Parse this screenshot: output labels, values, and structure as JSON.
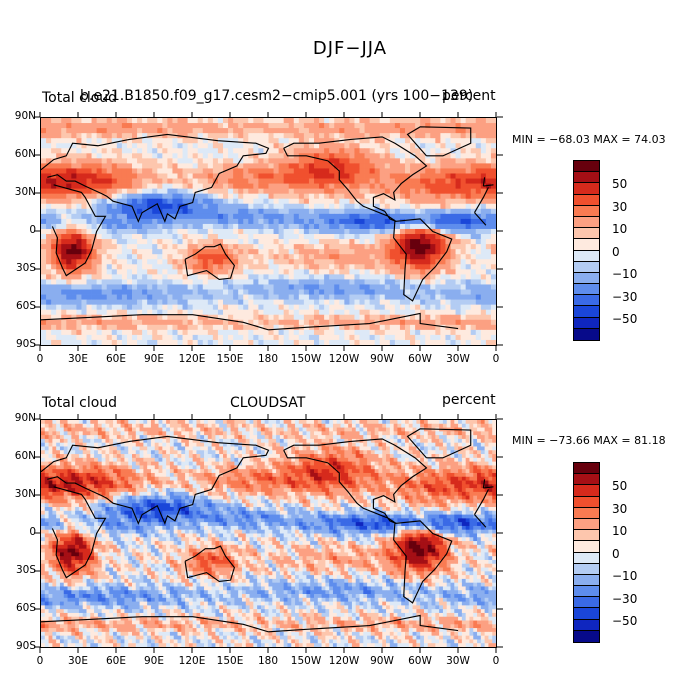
{
  "figure": {
    "title": "DJF−JJA"
  },
  "axes": {
    "lat_labels": [
      "90N",
      "60N",
      "30N",
      "0",
      "30S",
      "60S",
      "90S"
    ],
    "lon_labels": [
      "0",
      "30E",
      "60E",
      "90E",
      "120E",
      "150E",
      "180",
      "150W",
      "120W",
      "90W",
      "60W",
      "30W",
      "0"
    ]
  },
  "colors": {
    "levels": [
      "#67000d",
      "#a50f15",
      "#d62a1c",
      "#f0502e",
      "#f97b52",
      "#fca082",
      "#fdc6ad",
      "#feeadf",
      "#dde9f7",
      "#b3ccf3",
      "#8aaeef",
      "#5e8ded",
      "#3a6ae6",
      "#1a46d9",
      "#0f26bf",
      "#070a8a"
    ],
    "coast": "#000000"
  },
  "panels": [
    {
      "id": "model",
      "left_label": "Total cloud",
      "center_label": "b.e21.B1850.f09_g17.cesm2−cmip5.001 (yrs 100−139)",
      "right_label": "percent",
      "stats_text": "MIN = −68.03 MAX =  74.03",
      "min": -68.03,
      "max": 74.03
    },
    {
      "id": "obs",
      "left_label": "Total cloud",
      "center_label": "CLOUDSAT",
      "right_label": "percent",
      "stats_text": "MIN = −73.66 MAX =  81.18",
      "min": -73.66,
      "max": 81.18
    }
  ],
  "colorbar": {
    "labels": [
      "50",
      "30",
      "10",
      "0",
      "−10",
      "−30",
      "−50"
    ]
  }
}
